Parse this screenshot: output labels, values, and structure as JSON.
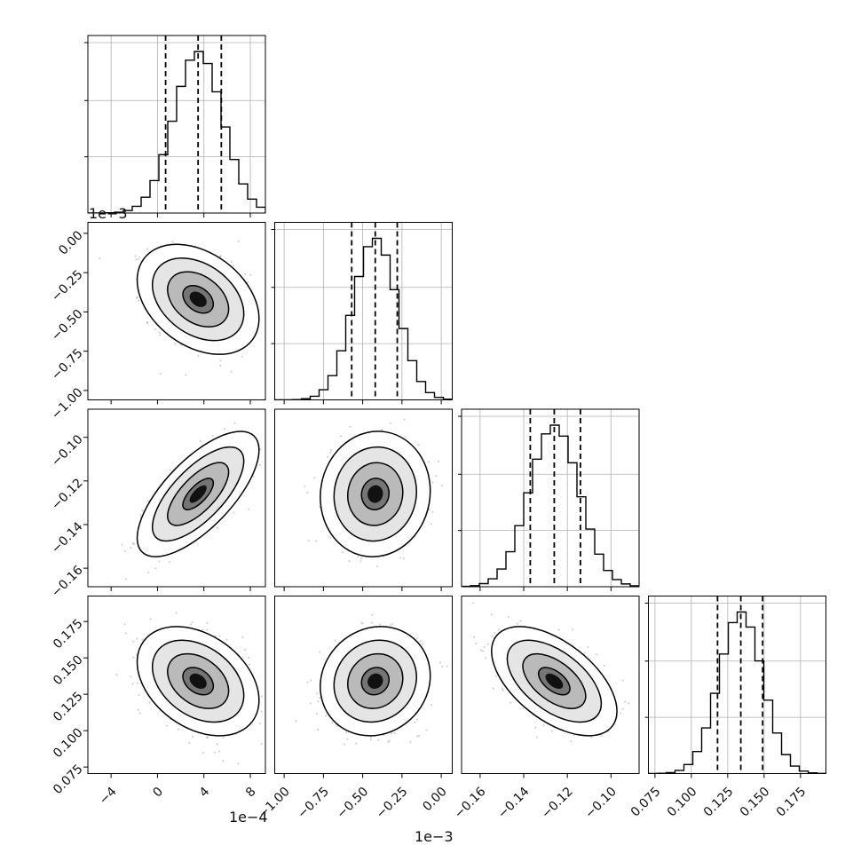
{
  "chart_data": {
    "type": "corner",
    "grid": true,
    "quantile_lines": "dashed",
    "colors": {
      "line": "#000000",
      "grid": "#b0b0b0",
      "scatter": "#7f7f7f"
    },
    "parameters": [
      {
        "range": [
          -0.0006,
          0.00093
        ],
        "ticks": [
          -0.0004,
          0.0,
          0.0004,
          0.0008
        ],
        "tick_labels": [
          "−4",
          "0",
          "4",
          "8"
        ],
        "offset_label": "1e−4",
        "mean": 0.00035,
        "sigma": 0.00021,
        "quantiles": [
          7e-05,
          0.00035,
          0.00055
        ]
      },
      {
        "range": [
          -0.00106,
          7e-05
        ],
        "ticks": [
          -0.001,
          -0.00075,
          -0.0005,
          -0.00025,
          0.0
        ],
        "tick_labels": [
          "−1.00",
          "−0.75",
          "−0.50",
          "−0.25",
          "0.00"
        ],
        "offset_label": "1e−3",
        "mean": -0.00042,
        "sigma": 0.00014,
        "quantiles": [
          -0.00057,
          -0.00042,
          -0.00028
        ]
      },
      {
        "range": [
          -0.1685,
          -0.0871
        ],
        "ticks": [
          -0.16,
          -0.14,
          -0.12,
          -0.1
        ],
        "tick_labels": [
          "−0.16",
          "−0.14",
          "−0.12",
          "−0.10"
        ],
        "offset_label": "",
        "mean": -0.126,
        "sigma": 0.0115,
        "quantiles": [
          -0.137,
          -0.126,
          -0.114
        ]
      },
      {
        "range": [
          0.0705,
          0.1925
        ],
        "ticks": [
          0.075,
          0.1,
          0.125,
          0.15,
          0.175
        ],
        "tick_labels": [
          "0.075",
          "0.100",
          "0.125",
          "0.150",
          "0.175"
        ],
        "offset_label": "",
        "mean": 0.134,
        "sigma": 0.015,
        "quantiles": [
          0.118,
          0.134,
          0.149
        ]
      }
    ],
    "correlations": {
      "1,0": -0.35,
      "2,0": 0.7,
      "2,1": 0.05,
      "3,0": -0.35,
      "3,1": 0.1,
      "3,2": -0.55
    },
    "bins": 20,
    "contour_levels_sigma": [
      0.5,
      1.0,
      1.5,
      2.0
    ]
  }
}
